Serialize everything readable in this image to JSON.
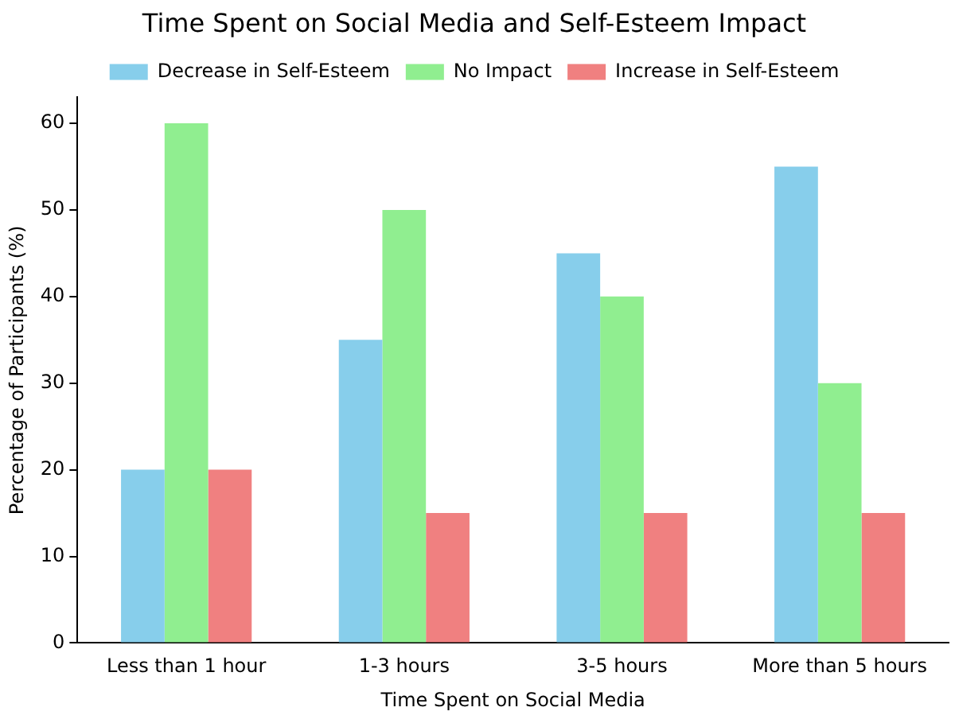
{
  "chart_data": {
    "type": "bar",
    "title": "Time Spent on Social Media and Self-Esteem Impact",
    "xlabel": "Time Spent on Social Media",
    "ylabel": "Percentage of Participants (%)",
    "categories": [
      "Less than 1 hour",
      "1-3 hours",
      "3-5 hours",
      "More than 5 hours"
    ],
    "series": [
      {
        "name": "Decrease in Self-Esteem",
        "color": "#87ceeb",
        "values": [
          20,
          35,
          45,
          55
        ]
      },
      {
        "name": "No Impact",
        "color": "#90ee90",
        "values": [
          60,
          50,
          40,
          30
        ]
      },
      {
        "name": "Increase in Self-Esteem",
        "color": "#f08080",
        "values": [
          20,
          15,
          15,
          15
        ]
      }
    ],
    "ylim": [
      0,
      63
    ],
    "yticks": [
      0,
      10,
      20,
      30,
      40,
      50,
      60
    ],
    "legend": "top"
  }
}
